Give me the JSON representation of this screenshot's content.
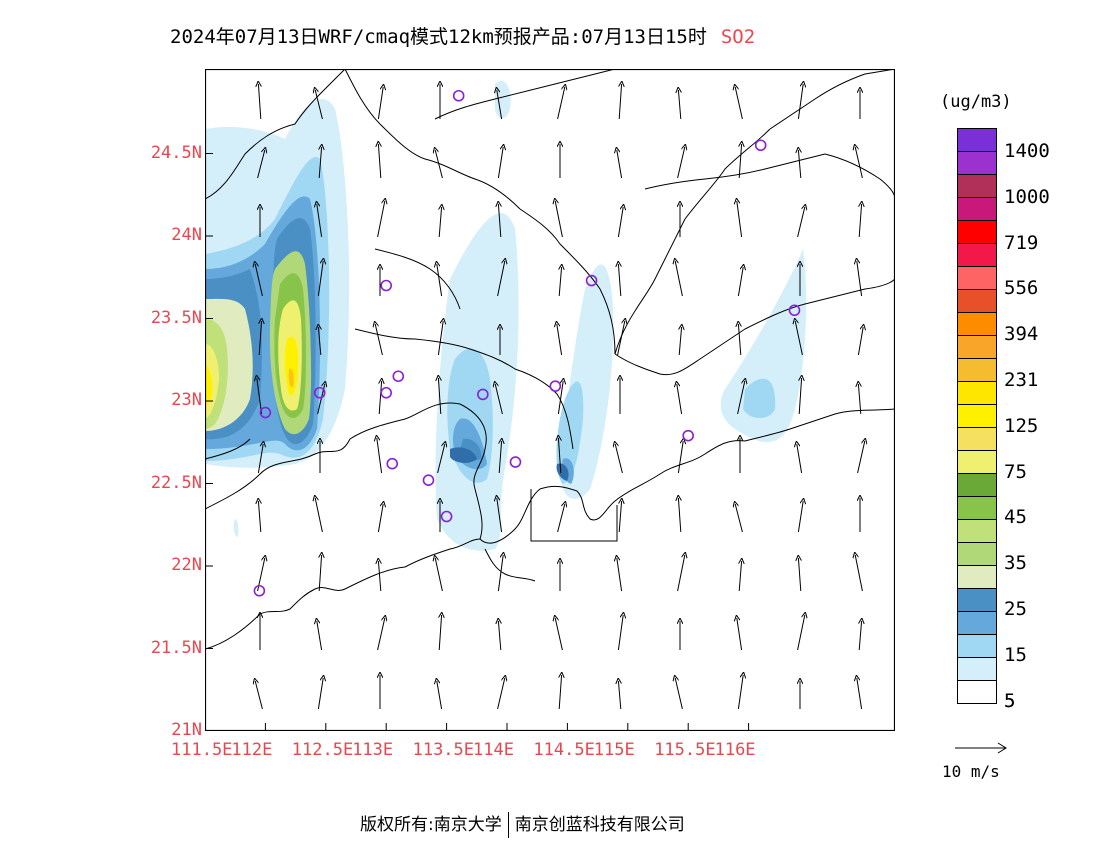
{
  "title": {
    "main": "2024年07月13日WRF/cmaq模式12km预报产品:07月13日15时",
    "species": "SO2"
  },
  "axes": {
    "lat_labels": [
      "24.5N",
      "24N",
      "23.5N",
      "23N",
      "22.5N",
      "22N",
      "21.5N",
      "21N"
    ],
    "lat_values": [
      24.5,
      24.0,
      23.5,
      23.0,
      22.5,
      22.0,
      21.5,
      21.0
    ],
    "lon_labels": [
      "111.5E",
      "112E",
      "112.5E",
      "113E",
      "113.5E",
      "114E",
      "114.5E",
      "115E",
      "115.5E",
      "116E"
    ],
    "lon_values": [
      111.5,
      112.0,
      112.5,
      113.0,
      113.5,
      114.0,
      114.5,
      115.0,
      115.5,
      116.0
    ],
    "label_color": "#e8474f"
  },
  "legend": {
    "unit": "(ug/m3)",
    "colors": [
      "#7b2fd6",
      "#9b32d0",
      "#b0305a",
      "#c8187a",
      "#ff0000",
      "#f2184a",
      "#ff6464",
      "#e8502a",
      "#ff8c00",
      "#f9a52a",
      "#f5bc30",
      "#ffe600",
      "#fff000",
      "#f5e060",
      "#f0f070",
      "#6aa838",
      "#88c44a",
      "#c0e07a",
      "#b0d878",
      "#e0ecc0",
      "#4a90c4",
      "#64a8dc",
      "#a0d8f4",
      "#d4eefa",
      "#ffffff"
    ],
    "labels": [
      "1400",
      "1000",
      "719",
      "556",
      "394",
      "231",
      "125",
      "75",
      "45",
      "35",
      "25",
      "15",
      "5"
    ]
  },
  "wind_scale": {
    "label": "10 m/s"
  },
  "footer": {
    "left": "版权所有:南京大学",
    "right": "南京创蓝科技有限公司"
  },
  "stations": [
    {
      "lon": 113.6,
      "lat": 24.85
    },
    {
      "lon": 116.1,
      "lat": 24.55
    },
    {
      "lon": 113.0,
      "lat": 23.7
    },
    {
      "lon": 114.7,
      "lat": 23.73
    },
    {
      "lon": 116.38,
      "lat": 23.55
    },
    {
      "lon": 112.45,
      "lat": 23.05
    },
    {
      "lon": 113.1,
      "lat": 23.15
    },
    {
      "lon": 113.0,
      "lat": 23.05
    },
    {
      "lon": 113.8,
      "lat": 23.04
    },
    {
      "lon": 114.4,
      "lat": 23.09
    },
    {
      "lon": 112.0,
      "lat": 22.93
    },
    {
      "lon": 113.05,
      "lat": 22.62
    },
    {
      "lon": 113.35,
      "lat": 22.52
    },
    {
      "lon": 114.07,
      "lat": 22.63
    },
    {
      "lon": 115.5,
      "lat": 22.79
    },
    {
      "lon": 113.5,
      "lat": 22.3
    },
    {
      "lon": 111.95,
      "lat": 21.85
    }
  ]
}
